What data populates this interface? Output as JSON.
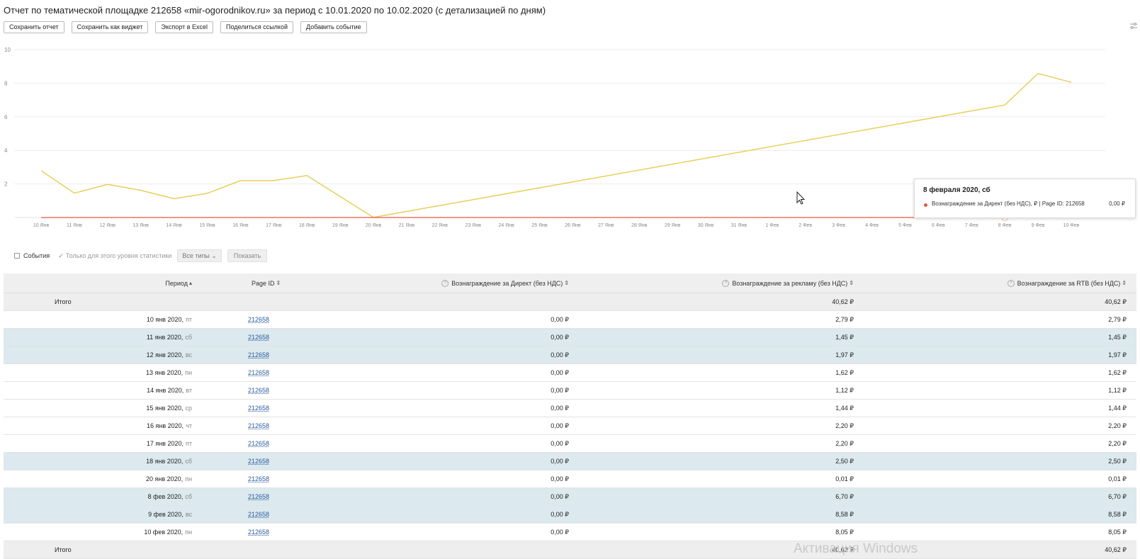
{
  "title": "Отчет по тематической площадке 212658 «mir-ogorodnikov.ru» за период с 10.01.2020 по 10.02.2020 (с детализацией по дням)",
  "toolbar": {
    "save_report": "Сохранить отчет",
    "save_widget": "Сохранить как виджет",
    "export_excel": "Экспорт в Excel",
    "share_link": "Поделиться ссылкой",
    "add_event": "Добавить событие"
  },
  "icons": {
    "settings": "sliders-icon",
    "cursor": "mouse-pointer-icon",
    "sort": "sort-icon",
    "help": "question-circle-icon"
  },
  "colors": {
    "yellow_series": "#e8cf5a",
    "red_series": "#e05a47",
    "row_highlight": "#dce9ee",
    "link": "#2a5a9c"
  },
  "chart_data": {
    "type": "line",
    "y_ticks": [
      "10",
      "8",
      "6",
      "4",
      "2"
    ],
    "ylim": [
      0,
      10
    ],
    "grid": true,
    "x_ticks": [
      "10 Янв",
      "11 Янв",
      "12 Янв",
      "13 Янв",
      "14 Янв",
      "15 Янв",
      "16 Янв",
      "17 Янв",
      "18 Янв",
      "19 Янв",
      "20 Янв",
      "21 Янв",
      "22 Янв",
      "23 Янв",
      "24 Янв",
      "25 Янв",
      "26 Янв",
      "27 Янв",
      "28 Янв",
      "29 Янв",
      "30 Янв",
      "31 Янв",
      "1 Фев",
      "2 Фев",
      "3 Фев",
      "4 Фев",
      "5 Фев",
      "6 Фев",
      "7 Фев",
      "8 Фев",
      "9 Фев",
      "10 Фев"
    ],
    "series": [
      {
        "name": "",
        "color": "#e8cf5a",
        "points": [
          {
            "x": "10 Янв",
            "y": 2.79
          },
          {
            "x": "11 Янв",
            "y": 1.45
          },
          {
            "x": "12 Янв",
            "y": 1.97
          },
          {
            "x": "13 Янв",
            "y": 1.62
          },
          {
            "x": "14 Янв",
            "y": 1.12
          },
          {
            "x": "15 Янв",
            "y": 1.44
          },
          {
            "x": "16 Янв",
            "y": 2.2
          },
          {
            "x": "17 Янв",
            "y": 2.2
          },
          {
            "x": "18 Янв",
            "y": 2.5
          },
          {
            "x": "20 Янв",
            "y": 0.01
          },
          {
            "x": "8 Фев",
            "y": 6.7
          },
          {
            "x": "9 Фев",
            "y": 8.58
          },
          {
            "x": "10 Фев",
            "y": 8.05
          }
        ]
      },
      {
        "name": "Вознаграждение за Директ (без НДС), ₽ | Page ID: 212658",
        "color": "#e05a47",
        "points": [
          {
            "x": "10 Янв",
            "y": 0
          },
          {
            "x": "10 Фев",
            "y": 0
          }
        ]
      }
    ]
  },
  "tooltip": {
    "title": "8 февраля 2020, сб",
    "series": "Вознаграждение за Директ (без НДС), ₽ | Page ID: 212658",
    "value": "0,00 ₽"
  },
  "events": {
    "events_label": "События",
    "only_level_label": "Только для этого уровня статистики",
    "types_select": "Все типы",
    "show_button": "Показать"
  },
  "table": {
    "headers": {
      "period": "Период",
      "page_id": "Page ID",
      "direct": "Вознаграждение за Директ (без НДС)",
      "ad": "Вознаграждение за рекламу (без НДС)",
      "rtb": "Вознаграждение за RTB (без НДС)"
    },
    "total_top": {
      "label": "Итого",
      "direct": "",
      "ad": "40,62 ₽",
      "rtb": "40,62 ₽"
    },
    "rows": [
      {
        "date": "10 янв 2020,",
        "wd": "пт",
        "page_id": "212658",
        "direct": "0,00 ₽",
        "ad": "2,79 ₽",
        "rtb": "2,79 ₽",
        "hl": false
      },
      {
        "date": "11 янв 2020,",
        "wd": "сб",
        "page_id": "212658",
        "direct": "0,00 ₽",
        "ad": "1,45 ₽",
        "rtb": "1,45 ₽",
        "hl": true
      },
      {
        "date": "12 янв 2020,",
        "wd": "вс",
        "page_id": "212658",
        "direct": "0,00 ₽",
        "ad": "1,97 ₽",
        "rtb": "1,97 ₽",
        "hl": true
      },
      {
        "date": "13 янв 2020,",
        "wd": "пн",
        "page_id": "212658",
        "direct": "0,00 ₽",
        "ad": "1,62 ₽",
        "rtb": "1,62 ₽",
        "hl": false
      },
      {
        "date": "14 янв 2020,",
        "wd": "вт",
        "page_id": "212658",
        "direct": "0,00 ₽",
        "ad": "1,12 ₽",
        "rtb": "1,12 ₽",
        "hl": false
      },
      {
        "date": "15 янв 2020,",
        "wd": "ср",
        "page_id": "212658",
        "direct": "0,00 ₽",
        "ad": "1,44 ₽",
        "rtb": "1,44 ₽",
        "hl": false
      },
      {
        "date": "16 янв 2020,",
        "wd": "чт",
        "page_id": "212658",
        "direct": "0,00 ₽",
        "ad": "2,20 ₽",
        "rtb": "2,20 ₽",
        "hl": false
      },
      {
        "date": "17 янв 2020,",
        "wd": "пт",
        "page_id": "212658",
        "direct": "0,00 ₽",
        "ad": "2,20 ₽",
        "rtb": "2,20 ₽",
        "hl": false
      },
      {
        "date": "18 янв 2020,",
        "wd": "сб",
        "page_id": "212658",
        "direct": "0,00 ₽",
        "ad": "2,50 ₽",
        "rtb": "2,50 ₽",
        "hl": true
      },
      {
        "date": "20 янв 2020,",
        "wd": "пн",
        "page_id": "212658",
        "direct": "0,00 ₽",
        "ad": "0,01 ₽",
        "rtb": "0,01 ₽",
        "hl": false
      },
      {
        "date": "8 фев 2020,",
        "wd": "сб",
        "page_id": "212658",
        "direct": "0,00 ₽",
        "ad": "6,70 ₽",
        "rtb": "6,70 ₽",
        "hl": true
      },
      {
        "date": "9 фев 2020,",
        "wd": "вс",
        "page_id": "212658",
        "direct": "0,00 ₽",
        "ad": "8,58 ₽",
        "rtb": "8,58 ₽",
        "hl": true
      },
      {
        "date": "10 фев 2020,",
        "wd": "пн",
        "page_id": "212658",
        "direct": "0,00 ₽",
        "ad": "8,05 ₽",
        "rtb": "8,05 ₽",
        "hl": false
      }
    ],
    "total_bottom": {
      "label": "Итого",
      "ad": "40,62 ₽",
      "rtb": "40,62 ₽"
    }
  },
  "watermark": "Активация Windows"
}
